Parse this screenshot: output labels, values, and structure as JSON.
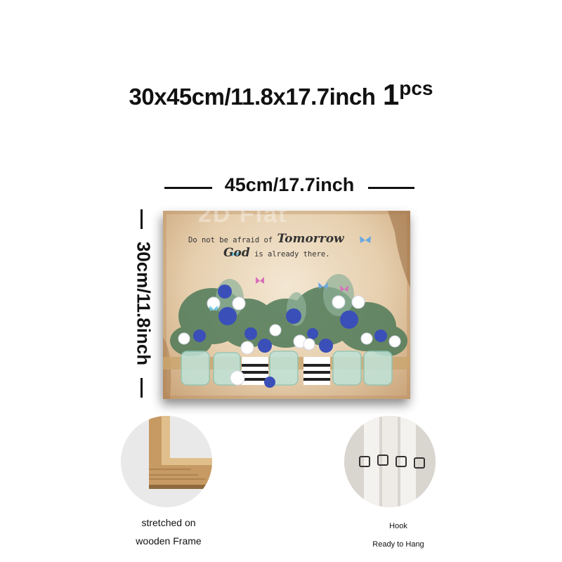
{
  "headline": {
    "size": "30x45cm/11.8x17.7inch",
    "quantity": "1",
    "unit": "pcs"
  },
  "width_label": "45cm/17.7inch",
  "height_label": "30cm/11.8inch",
  "artwork": {
    "watermark": "2D Flat",
    "quote_line1_prefix": "Do not be afraid of",
    "quote_word1": "Tomorrow",
    "quote_word2": "God",
    "quote_line2_suffix": "is already there."
  },
  "frame_caption": {
    "line1": "stretched on",
    "line2": "wooden Frame"
  },
  "hook_caption": {
    "line1": "Hook",
    "line2": "Ready to Hang"
  },
  "colors": {
    "paper": "#e6cfae",
    "flower_blue": "#3a4fb8",
    "jar": "#bfe3d8",
    "wood": "#c9a56e"
  }
}
